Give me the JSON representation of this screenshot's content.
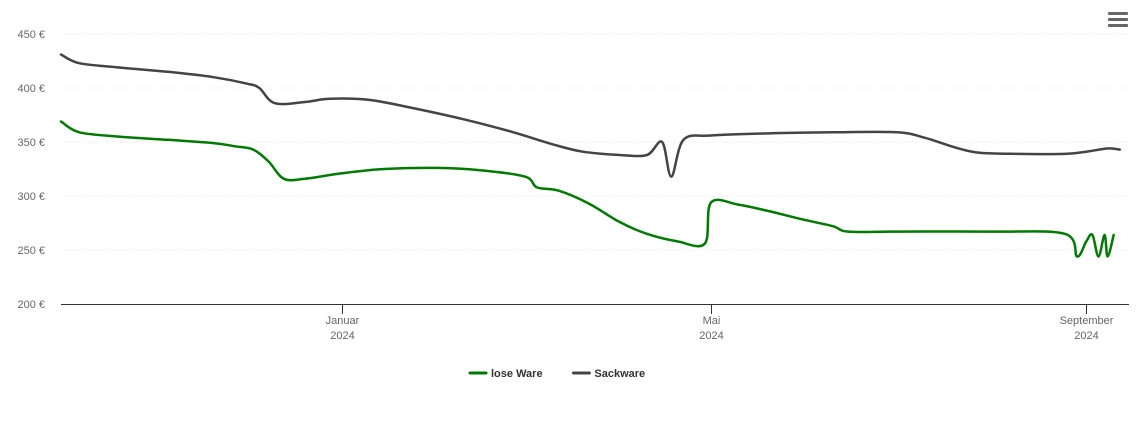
{
  "chart_data": {
    "type": "line",
    "y_ticks": [
      "450 €",
      "400 €",
      "350 €",
      "300 €",
      "250 €",
      "200 €"
    ],
    "y_tick_values": [
      450,
      400,
      350,
      300,
      250,
      200
    ],
    "ylim": [
      200,
      450
    ],
    "x_ticks": [
      {
        "month": "Januar",
        "year": "2024",
        "date": "2024-01-01"
      },
      {
        "month": "Mai",
        "year": "2024",
        "date": "2024-05-01"
      },
      {
        "month": "September",
        "year": "2024",
        "date": "2024-09-01"
      }
    ],
    "xlim": [
      "2023-10-01",
      "2024-09-15"
    ],
    "grid": true,
    "legend_position": "bottom-center",
    "series": [
      {
        "name": "lose Ware",
        "color": "#007a00",
        "points": [
          [
            "2023-10-01",
            369
          ],
          [
            "2023-10-07",
            359
          ],
          [
            "2023-10-20",
            355
          ],
          [
            "2023-11-05",
            352
          ],
          [
            "2023-11-20",
            349
          ],
          [
            "2023-11-27",
            346
          ],
          [
            "2023-12-03",
            343
          ],
          [
            "2023-12-08",
            332
          ],
          [
            "2023-12-13",
            316
          ],
          [
            "2023-12-20",
            316
          ],
          [
            "2024-01-01",
            321
          ],
          [
            "2024-01-15",
            325
          ],
          [
            "2024-02-01",
            326
          ],
          [
            "2024-02-15",
            324
          ],
          [
            "2024-03-01",
            318
          ],
          [
            "2024-03-05",
            308
          ],
          [
            "2024-03-12",
            305
          ],
          [
            "2024-03-22",
            293
          ],
          [
            "2024-04-01",
            276
          ],
          [
            "2024-04-10",
            265
          ],
          [
            "2024-04-20",
            258
          ],
          [
            "2024-04-29",
            256
          ],
          [
            "2024-05-01",
            294
          ],
          [
            "2024-05-10",
            292
          ],
          [
            "2024-05-20",
            286
          ],
          [
            "2024-05-30",
            279
          ],
          [
            "2024-06-10",
            272
          ],
          [
            "2024-06-15",
            267
          ],
          [
            "2024-07-01",
            267
          ],
          [
            "2024-08-01",
            267
          ],
          [
            "2024-08-25",
            265
          ],
          [
            "2024-08-29",
            244
          ],
          [
            "2024-09-01",
            258
          ],
          [
            "2024-09-03",
            264
          ],
          [
            "2024-09-05",
            244
          ],
          [
            "2024-09-07",
            264
          ],
          [
            "2024-09-08",
            244
          ],
          [
            "2024-09-10",
            264
          ]
        ]
      },
      {
        "name": "Sackware",
        "color": "#434348",
        "points": [
          [
            "2023-10-01",
            431
          ],
          [
            "2023-10-07",
            423
          ],
          [
            "2023-10-20",
            419
          ],
          [
            "2023-11-05",
            415
          ],
          [
            "2023-11-20",
            410
          ],
          [
            "2023-12-01",
            404
          ],
          [
            "2023-12-05",
            400
          ],
          [
            "2023-12-10",
            386
          ],
          [
            "2023-12-20",
            387
          ],
          [
            "2023-12-28",
            390
          ],
          [
            "2024-01-10",
            389
          ],
          [
            "2024-01-25",
            381
          ],
          [
            "2024-02-10",
            371
          ],
          [
            "2024-02-25",
            360
          ],
          [
            "2024-03-10",
            348
          ],
          [
            "2024-03-20",
            341
          ],
          [
            "2024-04-01",
            338
          ],
          [
            "2024-04-10",
            338
          ],
          [
            "2024-04-15",
            350
          ],
          [
            "2024-04-18",
            318
          ],
          [
            "2024-04-22",
            352
          ],
          [
            "2024-05-01",
            356
          ],
          [
            "2024-05-20",
            358
          ],
          [
            "2024-06-10",
            359
          ],
          [
            "2024-07-01",
            359
          ],
          [
            "2024-07-10",
            354
          ],
          [
            "2024-07-20",
            345
          ],
          [
            "2024-07-28",
            340
          ],
          [
            "2024-08-10",
            339
          ],
          [
            "2024-08-25",
            339
          ],
          [
            "2024-09-01",
            341
          ],
          [
            "2024-09-08",
            344
          ],
          [
            "2024-09-12",
            343
          ]
        ]
      }
    ]
  },
  "legend": [
    {
      "label": "lose Ware",
      "color": "#007a00"
    },
    {
      "label": "Sackware",
      "color": "#434348"
    }
  ],
  "toolbar": {
    "menu_icon": "hamburger-menu-icon"
  }
}
